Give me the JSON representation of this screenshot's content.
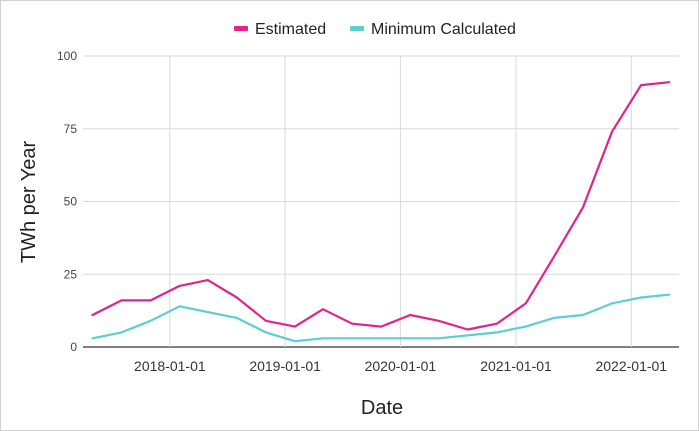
{
  "chart_data": {
    "type": "line",
    "xlabel": "Date",
    "ylabel": "TWh per Year",
    "ylim": [
      0,
      100
    ],
    "yticks": [
      0,
      25,
      50,
      75,
      100
    ],
    "xticks": [
      "2018-01-01",
      "2019-01-01",
      "2020-01-01",
      "2021-01-01",
      "2022-01-01"
    ],
    "xlim": [
      "2017-04-01",
      "2022-06-01"
    ],
    "grid": true,
    "legend_position": "top",
    "x": [
      "2017-05-01",
      "2017-08-01",
      "2017-11-01",
      "2018-02-01",
      "2018-05-01",
      "2018-08-01",
      "2018-11-01",
      "2019-02-01",
      "2019-05-01",
      "2019-08-01",
      "2019-11-01",
      "2020-02-01",
      "2020-05-01",
      "2020-08-01",
      "2020-11-01",
      "2021-02-01",
      "2021-05-01",
      "2021-08-01",
      "2021-11-01",
      "2022-02-01",
      "2022-05-01"
    ],
    "series": [
      {
        "name": "Estimated",
        "color": "#e2248a",
        "values": [
          11,
          16,
          16,
          21,
          23,
          17,
          9,
          7,
          13,
          8,
          7,
          11,
          9,
          6,
          8,
          15,
          31,
          48,
          74,
          90,
          91
        ]
      },
      {
        "name": "Minimum Calculated",
        "color": "#5ccfcf",
        "values": [
          3,
          5,
          9,
          14,
          12,
          10,
          5,
          2,
          3,
          3,
          3,
          3,
          3,
          4,
          5,
          7,
          10,
          11,
          15,
          17,
          18
        ]
      }
    ]
  }
}
